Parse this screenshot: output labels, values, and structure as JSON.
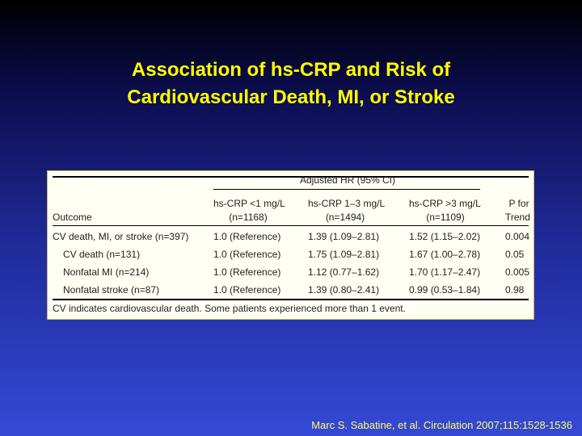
{
  "title": {
    "line1": "Association of hs-CRP and Risk of",
    "line2": "Cardiovascular Death, MI, or Stroke"
  },
  "table": {
    "group_header": "Adjusted HR (95% CI)",
    "headers": {
      "outcome": "Outcome",
      "col1_line1": "hs-CRP <1 mg/L",
      "col1_line2": "(n=1168)",
      "col2_line1": "hs-CRP 1–3 mg/L",
      "col2_line2": "(n=1494)",
      "col3_line1": "hs-CRP >3 mg/L",
      "col3_line2": "(n=1109)",
      "p_line1": "P for",
      "p_line2": "Trend"
    },
    "rows": [
      {
        "outcome": "CV death, MI, or stroke (n=397)",
        "c1": "1.0 (Reference)",
        "c2": "1.39 (1.09–2.81)",
        "c3": "1.52 (1.15–2.02)",
        "p": "0.004"
      },
      {
        "outcome": "CV death (n=131)",
        "c1": "1.0 (Reference)",
        "c2": "1.75 (1.09–2.81)",
        "c3": "1.67 (1.00–2.78)",
        "p": "0.05"
      },
      {
        "outcome": "Nonfatal MI (n=214)",
        "c1": "1.0 (Reference)",
        "c2": "1.12 (0.77–1.62)",
        "c3": "1.70 (1.17–2.47)",
        "p": "0.005"
      },
      {
        "outcome": "Nonfatal stroke (n=87)",
        "c1": "1.0 (Reference)",
        "c2": "1.39 (0.80–2.41)",
        "c3": "0.99 (0.53–1.84)",
        "p": "0.98"
      }
    ],
    "footnote": "CV indicates cardiovascular death. Some patients experienced more than 1 event."
  },
  "citation": "Marc S. Sabatine, et al. Circulation 2007;115:1528-1536",
  "colors": {
    "title": "#ffff00",
    "citation": "#ffff66",
    "table_bg": "#fffef2"
  }
}
